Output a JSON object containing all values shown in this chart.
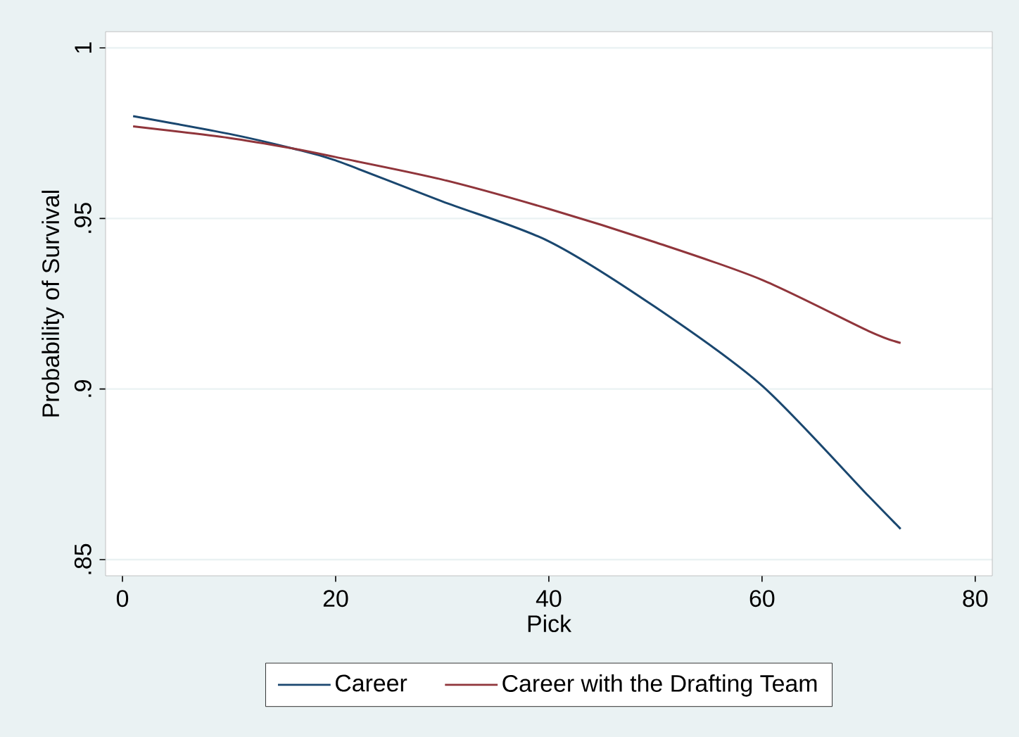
{
  "chart_data": {
    "type": "line",
    "xlabel": "Pick",
    "ylabel": "Probability of Survival",
    "x": [
      1,
      10,
      16,
      20,
      30,
      40,
      50,
      60,
      70,
      73
    ],
    "series": [
      {
        "name": "Career",
        "color": "#1a476f",
        "values": [
          0.98,
          0.9748,
          0.9705,
          0.967,
          0.955,
          0.9433,
          0.924,
          0.901,
          0.8686,
          0.859
        ]
      },
      {
        "name": "Career with the Drafting Team",
        "color": "#90353b",
        "values": [
          0.977,
          0.9736,
          0.9705,
          0.968,
          0.9614,
          0.9528,
          0.943,
          0.932,
          0.917,
          0.9135
        ]
      }
    ],
    "xlim": [
      -1.585,
      81.6
    ],
    "ylim": [
      0.84525,
      1.00475
    ],
    "xticks": [
      0,
      20,
      40,
      60,
      80
    ],
    "yticks": [
      {
        "value": 0.85,
        "label": ".85"
      },
      {
        "value": 0.9,
        "label": ".9"
      },
      {
        "value": 0.95,
        "label": ".95"
      },
      {
        "value": 1,
        "label": "1"
      }
    ],
    "grid": "y",
    "legend": "bottom"
  }
}
